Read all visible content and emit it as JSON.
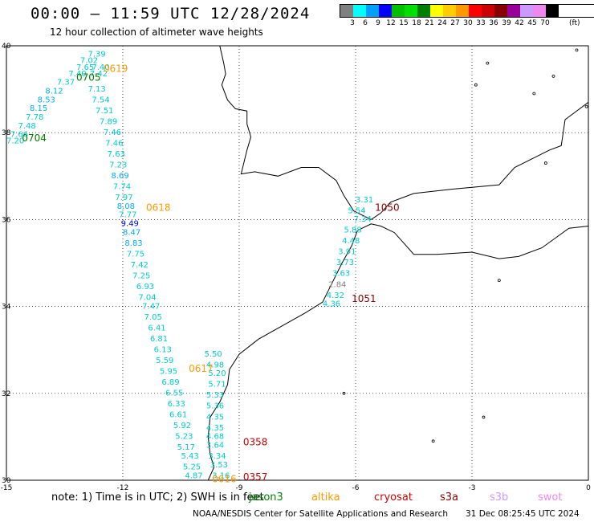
{
  "header": {
    "title": "00:00 – 11:59 UTC 12/28/2024",
    "subtitle": "12 hour collection of altimeter wave heights"
  },
  "legend": {
    "unit": "(ft)",
    "colors": [
      "#808080",
      "#00ffff",
      "#00a0ff",
      "#0000ff",
      "#00c000",
      "#00e000",
      "#008000",
      "#ffff00",
      "#ffcc00",
      "#ff9900",
      "#ff0000",
      "#cc0000",
      "#880000",
      "#990099",
      "#cc99ff",
      "#ee88ee",
      "#000000"
    ],
    "ticks": [
      "3",
      "6",
      "9",
      "12",
      "15",
      "18",
      "21",
      "24",
      "27",
      "30",
      "33",
      "36",
      "39",
      "42",
      "45",
      "70"
    ]
  },
  "map": {
    "lat_ticks": [
      "40",
      "38",
      "36",
      "34",
      "32",
      "30"
    ],
    "lon_ticks": [
      "-15",
      "-12",
      "-9",
      "-6",
      "-3",
      "0"
    ],
    "lat_range": [
      30,
      40
    ],
    "lon_range": [
      -15,
      0
    ],
    "track_labels": [
      {
        "text": "0619",
        "color": "#ff9900",
        "lon": -12.5,
        "lat": 39.4
      },
      {
        "text": "0705",
        "color": "#008000",
        "lon": -13.2,
        "lat": 39.2
      },
      {
        "text": "0704",
        "color": "#008000",
        "lon": -14.6,
        "lat": 37.8
      },
      {
        "text": "0618",
        "color": "#ff9900",
        "lon": -11.4,
        "lat": 36.2
      },
      {
        "text": "1050",
        "color": "#880000",
        "lon": -5.5,
        "lat": 36.2
      },
      {
        "text": "1051",
        "color": "#880000",
        "lon": -6.1,
        "lat": 34.1
      },
      {
        "text": "0617",
        "color": "#ff9900",
        "lon": -10.3,
        "lat": 32.5
      },
      {
        "text": "0358",
        "color": "#cc0000",
        "lon": -8.9,
        "lat": 30.8
      },
      {
        "text": "0357",
        "color": "#cc0000",
        "lon": -8.9,
        "lat": 30.0
      },
      {
        "text": "0616",
        "color": "#ff9900",
        "lon": -9.7,
        "lat": 29.95
      }
    ],
    "tracks": [
      {
        "id": "jason-west",
        "points": [
          {
            "lon": -12.9,
            "lat": 39.75,
            "v": "7.39",
            "color": "#00cccc"
          },
          {
            "lon": -13.1,
            "lat": 39.6,
            "v": "7.02",
            "color": "#00cccc"
          },
          {
            "lon": -13.2,
            "lat": 39.45,
            "v": "7.65",
            "color": "#00cccc"
          },
          {
            "lon": -12.8,
            "lat": 39.45,
            "v": "7.40",
            "color": "#00cccc"
          },
          {
            "lon": -13.4,
            "lat": 39.3,
            "v": "7.40",
            "color": "#00cccc"
          },
          {
            "lon": -12.85,
            "lat": 39.3,
            "v": "7.42",
            "color": "#00cccc"
          },
          {
            "lon": -13.7,
            "lat": 39.1,
            "v": "7.37",
            "color": "#00cccc"
          },
          {
            "lon": -14.0,
            "lat": 38.9,
            "v": "8.12",
            "color": "#00aaff"
          },
          {
            "lon": -14.2,
            "lat": 38.7,
            "v": "8.53",
            "color": "#00aaff"
          },
          {
            "lon": -14.4,
            "lat": 38.5,
            "v": "8.15",
            "color": "#00aaff"
          },
          {
            "lon": -14.5,
            "lat": 38.3,
            "v": "7.78",
            "color": "#00cccc"
          },
          {
            "lon": -14.7,
            "lat": 38.1,
            "v": "7.48",
            "color": "#00cccc"
          },
          {
            "lon": -14.9,
            "lat": 37.9,
            "v": "7.66",
            "color": "#00cccc"
          },
          {
            "lon": -15.0,
            "lat": 37.75,
            "v": "7.20",
            "color": "#00cccc"
          }
        ]
      },
      {
        "id": "altika-west",
        "points": [
          {
            "lon": -12.9,
            "lat": 38.95,
            "v": "7.13",
            "color": "#00cccc"
          },
          {
            "lon": -12.8,
            "lat": 38.7,
            "v": "7.54",
            "color": "#00cccc"
          },
          {
            "lon": -12.7,
            "lat": 38.45,
            "v": "7.51",
            "color": "#00cccc"
          },
          {
            "lon": -12.6,
            "lat": 38.2,
            "v": "7.89",
            "color": "#00cccc"
          },
          {
            "lon": -12.5,
            "lat": 37.95,
            "v": "7.46",
            "color": "#00cccc"
          },
          {
            "lon": -12.45,
            "lat": 37.7,
            "v": "7.46",
            "color": "#00cccc"
          },
          {
            "lon": -12.4,
            "lat": 37.45,
            "v": "7.63",
            "color": "#00cccc"
          },
          {
            "lon": -12.35,
            "lat": 37.2,
            "v": "7.23",
            "color": "#00cccc"
          },
          {
            "lon": -12.3,
            "lat": 36.95,
            "v": "8.69",
            "color": "#00aaff"
          },
          {
            "lon": -12.25,
            "lat": 36.7,
            "v": "7.74",
            "color": "#00cccc"
          },
          {
            "lon": -12.2,
            "lat": 36.45,
            "v": "7.97",
            "color": "#00cccc"
          },
          {
            "lon": -12.15,
            "lat": 36.25,
            "v": "8.08",
            "color": "#00aaff"
          },
          {
            "lon": -12.1,
            "lat": 36.05,
            "v": "7.77",
            "color": "#00cccc"
          },
          {
            "lon": -12.05,
            "lat": 35.85,
            "v": "9.49",
            "color": "#0000ff"
          },
          {
            "lon": -12.0,
            "lat": 35.65,
            "v": "8.47",
            "color": "#00aaff"
          },
          {
            "lon": -11.95,
            "lat": 35.4,
            "v": "8.83",
            "color": "#00aaff"
          },
          {
            "lon": -11.9,
            "lat": 35.15,
            "v": "7.75",
            "color": "#00cccc"
          },
          {
            "lon": -11.8,
            "lat": 34.9,
            "v": "7.42",
            "color": "#00cccc"
          },
          {
            "lon": -11.75,
            "lat": 34.65,
            "v": "7.25",
            "color": "#00cccc"
          },
          {
            "lon": -11.65,
            "lat": 34.4,
            "v": "6.93",
            "color": "#00cccc"
          },
          {
            "lon": -11.6,
            "lat": 34.15,
            "v": "7.04",
            "color": "#00cccc"
          },
          {
            "lon": -11.5,
            "lat": 33.95,
            "v": "7.47",
            "color": "#00cccc"
          },
          {
            "lon": -11.45,
            "lat": 33.7,
            "v": "7.05",
            "color": "#00cccc"
          },
          {
            "lon": -11.35,
            "lat": 33.45,
            "v": "6.41",
            "color": "#00cccc"
          },
          {
            "lon": -11.3,
            "lat": 33.2,
            "v": "6.81",
            "color": "#00cccc"
          },
          {
            "lon": -11.2,
            "lat": 32.95,
            "v": "6.13",
            "color": "#00cccc"
          },
          {
            "lon": -11.15,
            "lat": 32.7,
            "v": "5.59",
            "color": "#00cccc"
          },
          {
            "lon": -11.05,
            "lat": 32.45,
            "v": "5.95",
            "color": "#00cccc"
          },
          {
            "lon": -11.0,
            "lat": 32.2,
            "v": "6.89",
            "color": "#00cccc"
          },
          {
            "lon": -10.9,
            "lat": 31.95,
            "v": "6.55",
            "color": "#00cccc"
          },
          {
            "lon": -10.85,
            "lat": 31.7,
            "v": "6.33",
            "color": "#00cccc"
          },
          {
            "lon": -10.8,
            "lat": 31.45,
            "v": "6.61",
            "color": "#00cccc"
          },
          {
            "lon": -10.7,
            "lat": 31.2,
            "v": "5.92",
            "color": "#00cccc"
          },
          {
            "lon": -10.65,
            "lat": 30.95,
            "v": "5.23",
            "color": "#00cccc"
          },
          {
            "lon": -10.6,
            "lat": 30.7,
            "v": "5.17",
            "color": "#00cccc"
          },
          {
            "lon": -10.5,
            "lat": 30.5,
            "v": "5.43",
            "color": "#00cccc"
          },
          {
            "lon": -10.45,
            "lat": 30.25,
            "v": "5.25",
            "color": "#00cccc"
          },
          {
            "lon": -10.4,
            "lat": 30.05,
            "v": "4.87",
            "color": "#00cccc"
          }
        ]
      },
      {
        "id": "coastal-east",
        "points": [
          {
            "lon": -9.9,
            "lat": 32.85,
            "v": "5.50",
            "color": "#00cccc"
          },
          {
            "lon": -9.85,
            "lat": 32.6,
            "v": "4.98",
            "color": "#00cccc"
          },
          {
            "lon": -9.8,
            "lat": 32.4,
            "v": "5.20",
            "color": "#00cccc"
          },
          {
            "lon": -9.8,
            "lat": 32.15,
            "v": "5.71",
            "color": "#00cccc"
          },
          {
            "lon": -9.85,
            "lat": 31.9,
            "v": "5.33",
            "color": "#00cccc"
          },
          {
            "lon": -9.85,
            "lat": 31.65,
            "v": "5.36",
            "color": "#00cccc"
          },
          {
            "lon": -9.85,
            "lat": 31.4,
            "v": "4.35",
            "color": "#00cccc"
          },
          {
            "lon": -9.85,
            "lat": 31.15,
            "v": "4.35",
            "color": "#00cccc"
          },
          {
            "lon": -9.85,
            "lat": 30.95,
            "v": "4.68",
            "color": "#00cccc"
          },
          {
            "lon": -9.85,
            "lat": 30.75,
            "v": "3.64",
            "color": "#00cccc"
          },
          {
            "lon": -9.8,
            "lat": 30.5,
            "v": "3.34",
            "color": "#00cccc"
          },
          {
            "lon": -9.75,
            "lat": 30.3,
            "v": "3.53",
            "color": "#00cccc"
          },
          {
            "lon": -9.7,
            "lat": 30.05,
            "v": "3.16",
            "color": "#00cccc"
          }
        ]
      },
      {
        "id": "strait",
        "points": [
          {
            "lon": -6.0,
            "lat": 36.4,
            "v": "3.31",
            "color": "#00cccc"
          },
          {
            "lon": -6.2,
            "lat": 36.15,
            "v": "5.54",
            "color": "#00cccc"
          },
          {
            "lon": -6.05,
            "lat": 35.95,
            "v": "7.34",
            "color": "#00cccc"
          },
          {
            "lon": -6.3,
            "lat": 35.7,
            "v": "5.88",
            "color": "#00cccc"
          },
          {
            "lon": -6.35,
            "lat": 35.45,
            "v": "4.48",
            "color": "#00cccc"
          },
          {
            "lon": -6.45,
            "lat": 35.2,
            "v": "3.91",
            "color": "#00cccc"
          },
          {
            "lon": -6.5,
            "lat": 34.95,
            "v": "3.73",
            "color": "#00cccc"
          },
          {
            "lon": -6.6,
            "lat": 34.7,
            "v": "3.63",
            "color": "#00cccc"
          },
          {
            "lon": -6.7,
            "lat": 34.45,
            "v": "2.84",
            "color": "#808080"
          },
          {
            "lon": -6.75,
            "lat": 34.2,
            "v": "4.32",
            "color": "#00cccc"
          },
          {
            "lon": -6.85,
            "lat": 34.0,
            "v": "4.36",
            "color": "#00cccc"
          }
        ]
      }
    ]
  },
  "footer": {
    "note": "note:  1) Time is in UTC;  2) SWH is in feet",
    "satellites": [
      {
        "name": "jason3",
        "color": "#008000"
      },
      {
        "name": "altika",
        "color": "#ff9900"
      },
      {
        "name": "cryosat",
        "color": "#cc0000"
      },
      {
        "name": "s3a",
        "color": "#880000"
      },
      {
        "name": "s3b",
        "color": "#cc99ff"
      },
      {
        "name": "swot",
        "color": "#ee88ee"
      }
    ],
    "credit": "NOAA/NESDIS Center for Satellite Applications and Research",
    "timestamp": "31 Dec 08:25:45 UTC 2024"
  }
}
